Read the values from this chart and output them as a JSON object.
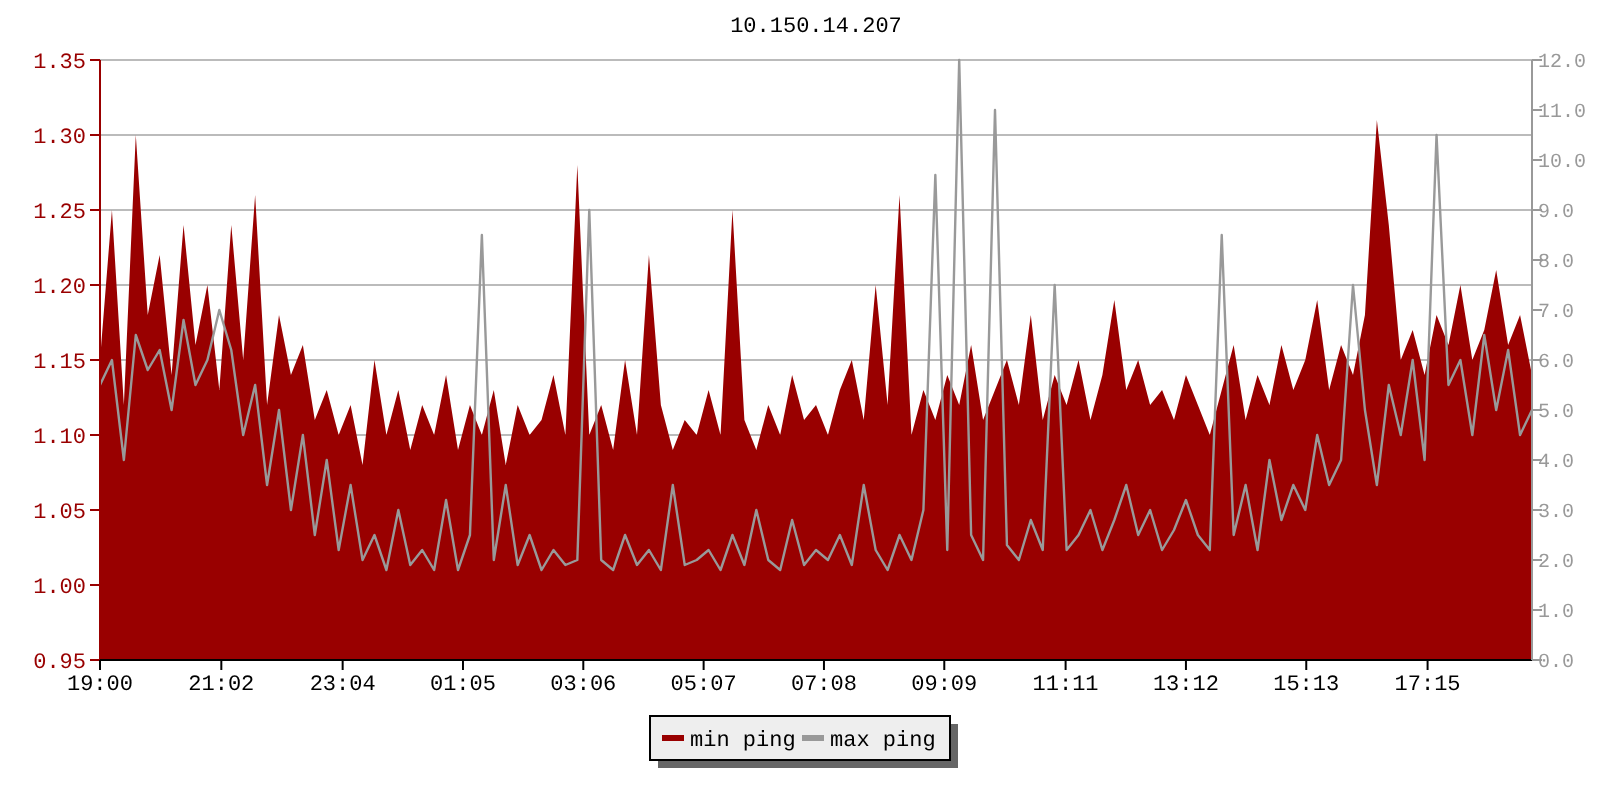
{
  "chart_data": {
    "type": "area",
    "title": "10.150.14.207",
    "xlim": [
      "2000-01-01T19:00",
      "2000-01-02T19:00"
    ],
    "x": [
      "2000-01-01T19:00",
      "2000-01-01T19:12",
      "2000-01-01T19:24",
      "2000-01-01T19:36",
      "2000-01-01T19:48",
      "2000-01-01T20:00",
      "2000-01-01T20:12",
      "2000-01-01T20:24",
      "2000-01-01T20:36",
      "2000-01-01T20:48",
      "2000-01-01T21:00",
      "2000-01-01T21:12",
      "2000-01-01T21:24",
      "2000-01-01T21:36",
      "2000-01-01T21:48",
      "2000-01-01T22:00",
      "2000-01-01T22:12",
      "2000-01-01T22:24",
      "2000-01-01T22:36",
      "2000-01-01T22:48",
      "2000-01-01T23:00",
      "2000-01-01T23:12",
      "2000-01-01T23:24",
      "2000-01-01T23:36",
      "2000-01-01T23:48",
      "2000-01-02T00:00",
      "2000-01-02T00:12",
      "2000-01-02T00:24",
      "2000-01-02T00:36",
      "2000-01-02T00:48",
      "2000-01-02T01:00",
      "2000-01-02T01:12",
      "2000-01-02T01:24",
      "2000-01-02T01:36",
      "2000-01-02T01:48",
      "2000-01-02T02:00",
      "2000-01-02T02:12",
      "2000-01-02T02:24",
      "2000-01-02T02:36",
      "2000-01-02T02:48",
      "2000-01-02T03:00",
      "2000-01-02T03:12",
      "2000-01-02T03:24",
      "2000-01-02T03:36",
      "2000-01-02T03:48",
      "2000-01-02T04:00",
      "2000-01-02T04:12",
      "2000-01-02T04:24",
      "2000-01-02T04:36",
      "2000-01-02T04:48",
      "2000-01-02T05:00",
      "2000-01-02T05:12",
      "2000-01-02T05:24",
      "2000-01-02T05:36",
      "2000-01-02T05:48",
      "2000-01-02T06:00",
      "2000-01-02T06:12",
      "2000-01-02T06:24",
      "2000-01-02T06:36",
      "2000-01-02T06:48",
      "2000-01-02T07:00",
      "2000-01-02T07:12",
      "2000-01-02T07:24",
      "2000-01-02T07:36",
      "2000-01-02T07:48",
      "2000-01-02T08:00",
      "2000-01-02T08:12",
      "2000-01-02T08:24",
      "2000-01-02T08:36",
      "2000-01-02T08:48",
      "2000-01-02T09:00",
      "2000-01-02T09:12",
      "2000-01-02T09:24",
      "2000-01-02T09:36",
      "2000-01-02T09:48",
      "2000-01-02T10:00",
      "2000-01-02T10:12",
      "2000-01-02T10:24",
      "2000-01-02T10:36",
      "2000-01-02T10:48",
      "2000-01-02T11:00",
      "2000-01-02T11:12",
      "2000-01-02T11:24",
      "2000-01-02T11:36",
      "2000-01-02T11:48",
      "2000-01-02T12:00",
      "2000-01-02T12:12",
      "2000-01-02T12:24",
      "2000-01-02T12:36",
      "2000-01-02T12:48",
      "2000-01-02T13:00",
      "2000-01-02T13:12",
      "2000-01-02T13:24",
      "2000-01-02T13:36",
      "2000-01-02T13:48",
      "2000-01-02T14:00",
      "2000-01-02T14:12",
      "2000-01-02T14:24",
      "2000-01-02T14:36",
      "2000-01-02T14:48",
      "2000-01-02T15:00",
      "2000-01-02T15:12",
      "2000-01-02T15:24",
      "2000-01-02T15:36",
      "2000-01-02T15:48",
      "2000-01-02T16:00",
      "2000-01-02T16:12",
      "2000-01-02T16:24",
      "2000-01-02T16:36",
      "2000-01-02T16:48",
      "2000-01-02T17:00",
      "2000-01-02T17:12",
      "2000-01-02T17:24",
      "2000-01-02T17:36",
      "2000-01-02T17:48",
      "2000-01-02T18:00",
      "2000-01-02T18:12",
      "2000-01-02T18:24",
      "2000-01-02T18:36",
      "2000-01-02T18:48",
      "2000-01-02T19:00"
    ],
    "xticks": [
      {
        "value": "2000-01-01T19:00",
        "label": "19:00"
      },
      {
        "value": "2000-01-01T21:02",
        "label": "21:02"
      },
      {
        "value": "2000-01-01T23:04",
        "label": "23:04"
      },
      {
        "value": "2000-01-02T01:05",
        "label": "01:05"
      },
      {
        "value": "2000-01-02T03:06",
        "label": "03:06"
      },
      {
        "value": "2000-01-02T05:07",
        "label": "05:07"
      },
      {
        "value": "2000-01-02T07:08",
        "label": "07:08"
      },
      {
        "value": "2000-01-02T09:09",
        "label": "09:09"
      },
      {
        "value": "2000-01-02T11:11",
        "label": "11:11"
      },
      {
        "value": "2000-01-02T13:12",
        "label": "13:12"
      },
      {
        "value": "2000-01-02T15:13",
        "label": "15:13"
      },
      {
        "value": "2000-01-02T17:15",
        "label": "17:15"
      }
    ],
    "ylim": [
      0.95,
      1.35
    ],
    "yticks": [
      {
        "value": 0.95,
        "label": "0.95"
      },
      {
        "value": 1,
        "label": "1.00"
      },
      {
        "value": 1.05,
        "label": "1.05"
      },
      {
        "value": 1.1,
        "label": "1.10"
      },
      {
        "value": 1.15,
        "label": "1.15"
      },
      {
        "value": 1.2,
        "label": "1.20"
      },
      {
        "value": 1.25,
        "label": "1.25"
      },
      {
        "value": 1.3,
        "label": "1.30"
      },
      {
        "value": 1.35,
        "label": "1.35"
      }
    ],
    "y2lim": [
      0,
      12
    ],
    "y2ticks": [
      {
        "value": 0,
        "label": "0.0"
      },
      {
        "value": 1,
        "label": "1.0"
      },
      {
        "value": 2,
        "label": "2.0"
      },
      {
        "value": 3,
        "label": "3.0"
      },
      {
        "value": 4,
        "label": "4.0"
      },
      {
        "value": 5,
        "label": "5.0"
      },
      {
        "value": 6,
        "label": "6.0"
      },
      {
        "value": 7,
        "label": "7.0"
      },
      {
        "value": 8,
        "label": "8.0"
      },
      {
        "value": 9,
        "label": "9.0"
      },
      {
        "value": 10,
        "label": "10.0"
      },
      {
        "value": 11,
        "label": "11.0"
      },
      {
        "value": 12,
        "label": "12.0"
      }
    ],
    "grid": "y",
    "legend": "bottom",
    "series": [
      {
        "name": "min ping",
        "color": "#990000",
        "values": [
          1.15,
          1.25,
          1.12,
          1.3,
          1.18,
          1.22,
          1.14,
          1.24,
          1.16,
          1.2,
          1.13,
          1.24,
          1.15,
          1.26,
          1.12,
          1.18,
          1.14,
          1.16,
          1.11,
          1.13,
          1.1,
          1.12,
          1.08,
          1.15,
          1.1,
          1.13,
          1.09,
          1.12,
          1.1,
          1.14,
          1.09,
          1.12,
          1.1,
          1.13,
          1.08,
          1.12,
          1.1,
          1.11,
          1.14,
          1.1,
          1.28,
          1.1,
          1.12,
          1.09,
          1.15,
          1.1,
          1.22,
          1.12,
          1.09,
          1.11,
          1.1,
          1.13,
          1.1,
          1.25,
          1.11,
          1.09,
          1.12,
          1.1,
          1.14,
          1.11,
          1.12,
          1.1,
          1.13,
          1.15,
          1.11,
          1.2,
          1.12,
          1.26,
          1.1,
          1.13,
          1.11,
          1.14,
          1.12,
          1.16,
          1.11,
          1.13,
          1.15,
          1.12,
          1.18,
          1.11,
          1.14,
          1.12,
          1.15,
          1.11,
          1.14,
          1.19,
          1.13,
          1.15,
          1.12,
          1.13,
          1.11,
          1.14,
          1.12,
          1.1,
          1.13,
          1.16,
          1.11,
          1.14,
          1.12,
          1.16,
          1.13,
          1.15,
          1.19,
          1.13,
          1.16,
          1.14,
          1.18,
          1.31,
          1.24,
          1.15,
          1.17,
          1.14,
          1.18,
          1.16,
          1.2,
          1.15,
          1.17,
          1.21,
          1.16,
          1.18,
          1.14
        ]
      },
      {
        "name": "max ping",
        "type": "line",
        "axis": "y2",
        "color": "#999999",
        "values": [
          5.5,
          6.0,
          4.0,
          6.5,
          5.8,
          6.2,
          5.0,
          6.8,
          5.5,
          6.0,
          7.0,
          6.2,
          4.5,
          5.5,
          3.5,
          5.0,
          3.0,
          4.5,
          2.5,
          4.0,
          2.2,
          3.5,
          2.0,
          2.5,
          1.8,
          3.0,
          1.9,
          2.2,
          1.8,
          3.2,
          1.8,
          2.5,
          8.5,
          2.0,
          3.5,
          1.9,
          2.5,
          1.8,
          2.2,
          1.9,
          2.0,
          9.0,
          2.0,
          1.8,
          2.5,
          1.9,
          2.2,
          1.8,
          3.5,
          1.9,
          2.0,
          2.2,
          1.8,
          2.5,
          1.9,
          3.0,
          2.0,
          1.8,
          2.8,
          1.9,
          2.2,
          2.0,
          2.5,
          1.9,
          3.5,
          2.2,
          1.8,
          2.5,
          2.0,
          3.0,
          9.7,
          2.2,
          12.0,
          2.5,
          2.0,
          11.0,
          2.3,
          2.0,
          2.8,
          2.2,
          7.5,
          2.2,
          2.5,
          3.0,
          2.2,
          2.8,
          3.5,
          2.5,
          3.0,
          2.2,
          2.6,
          3.2,
          2.5,
          2.2,
          8.5,
          2.5,
          3.5,
          2.2,
          4.0,
          2.8,
          3.5,
          3.0,
          4.5,
          3.5,
          4.0,
          7.5,
          5.0,
          3.5,
          5.5,
          4.5,
          6.0,
          4.0,
          10.5,
          5.5,
          6.0,
          4.5,
          6.5,
          5.0,
          6.2,
          4.5,
          5.0
        ]
      }
    ]
  }
}
